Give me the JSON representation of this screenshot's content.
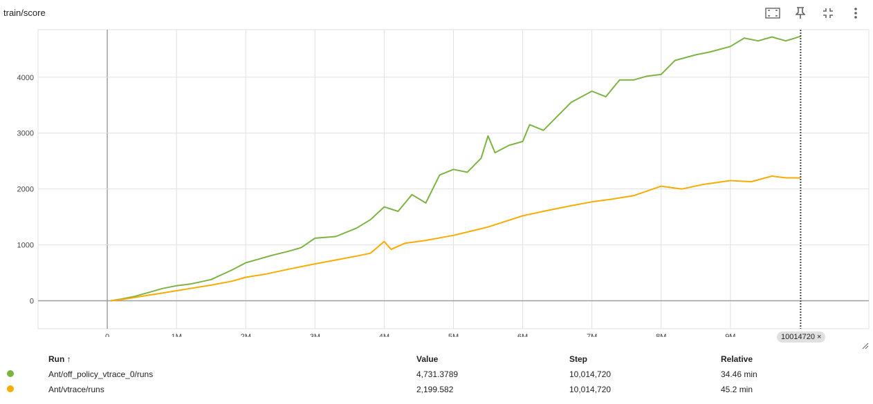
{
  "card": {
    "title": "train/score",
    "toolbar": [
      {
        "name": "fit-domain-icon"
      },
      {
        "name": "pin-icon"
      },
      {
        "name": "collapse-icon"
      },
      {
        "name": "more-vert-icon"
      }
    ]
  },
  "step_chip": {
    "label": "10014720",
    "close": "×"
  },
  "table": {
    "headers": {
      "run": "Run",
      "sort": "↑",
      "value": "Value",
      "step": "Step",
      "relative": "Relative"
    },
    "rows": [
      {
        "color": "#7cb342",
        "run": "Ant/off_policy_vtrace_0/runs",
        "value": "4,731.3789",
        "step": "10,014,720",
        "relative": "34.46 min"
      },
      {
        "color": "#f9ab00",
        "run": "Ant/vtrace/runs",
        "value": "2,199.582",
        "step": "10,014,720",
        "relative": "45.2 min"
      }
    ]
  },
  "chart_data": {
    "type": "line",
    "title": "train/score",
    "xlabel": "",
    "ylabel": "",
    "xlim": [
      -1000000,
      11000000
    ],
    "ylim": [
      -500,
      4850
    ],
    "grid": true,
    "xticks": [
      -1000000,
      0,
      1000000,
      2000000,
      3000000,
      4000000,
      5000000,
      6000000,
      7000000,
      8000000,
      9000000
    ],
    "xtick_labels": [
      "",
      "0",
      "1M",
      "2M",
      "3M",
      "4M",
      "5M",
      "6M",
      "7M",
      "8M",
      "9M"
    ],
    "yticks": [
      0,
      1000,
      2000,
      3000,
      4000
    ],
    "ytick_labels": [
      "0",
      "1000",
      "2000",
      "3000",
      "4000"
    ],
    "cursor_step": 10014720,
    "series": [
      {
        "name": "Ant/off_policy_vtrace_0/runs",
        "color": "#7cb342",
        "x": [
          50000,
          200000,
          400000,
          600000,
          800000,
          1000000,
          1200000,
          1500000,
          1800000,
          2000000,
          2200000,
          2400000,
          2600000,
          2800000,
          3000000,
          3300000,
          3600000,
          3800000,
          4000000,
          4200000,
          4400000,
          4600000,
          4800000,
          5000000,
          5200000,
          5400000,
          5500000,
          5600000,
          5800000,
          6000000,
          6100000,
          6300000,
          6500000,
          6700000,
          7000000,
          7200000,
          7400000,
          7600000,
          7800000,
          8000000,
          8200000,
          8500000,
          8700000,
          9000000,
          9200000,
          9400000,
          9600000,
          9800000,
          10014720
        ],
        "y": [
          0,
          30,
          80,
          150,
          220,
          270,
          300,
          380,
          550,
          680,
          750,
          820,
          880,
          950,
          1120,
          1150,
          1300,
          1450,
          1680,
          1600,
          1900,
          1750,
          2250,
          2350,
          2300,
          2550,
          2950,
          2650,
          2780,
          2850,
          3150,
          3050,
          3300,
          3550,
          3750,
          3650,
          3950,
          3950,
          4020,
          4050,
          4300,
          4400,
          4450,
          4550,
          4700,
          4650,
          4720,
          4650,
          4731
        ]
      },
      {
        "name": "Ant/vtrace/runs",
        "color": "#f9ab00",
        "x": [
          50000,
          200000,
          400000,
          600000,
          800000,
          1000000,
          1200000,
          1500000,
          1800000,
          2000000,
          2300000,
          2600000,
          3000000,
          3300000,
          3600000,
          3800000,
          4000000,
          4100000,
          4300000,
          4600000,
          5000000,
          5200000,
          5500000,
          5700000,
          6000000,
          6300000,
          6700000,
          7000000,
          7300000,
          7600000,
          8000000,
          8300000,
          8600000,
          9000000,
          9300000,
          9600000,
          9800000,
          10014720
        ],
        "y": [
          0,
          20,
          60,
          100,
          140,
          180,
          220,
          280,
          350,
          420,
          480,
          560,
          660,
          730,
          800,
          850,
          1060,
          920,
          1030,
          1080,
          1170,
          1230,
          1320,
          1400,
          1520,
          1600,
          1700,
          1770,
          1820,
          1880,
          2050,
          2000,
          2080,
          2150,
          2130,
          2230,
          2200,
          2199
        ]
      }
    ]
  }
}
